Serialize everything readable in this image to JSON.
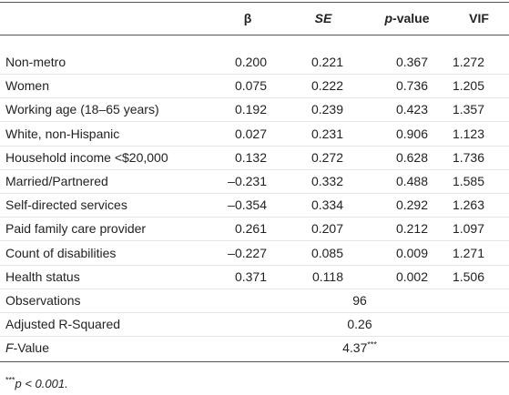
{
  "table": {
    "header": [
      [
        {
          "text": "β"
        }
      ],
      [
        {
          "text": "SE",
          "italic": true
        }
      ],
      [
        {
          "text": "p",
          "italic": true
        },
        {
          "text": "-value"
        }
      ],
      [
        {
          "text": "VIF"
        }
      ]
    ],
    "rows": [
      {
        "label": "Non-metro",
        "cells": [
          "0.200",
          "0.221",
          "0.367",
          "1.272"
        ]
      },
      {
        "label": "Women",
        "cells": [
          "0.075",
          "0.222",
          "0.736",
          "1.205"
        ]
      },
      {
        "label": "Working age (18–65 years)",
        "cells": [
          "0.192",
          "0.239",
          "0.423",
          "1.357"
        ]
      },
      {
        "label": "White, non-Hispanic",
        "cells": [
          "0.027",
          "0.231",
          "0.906",
          "1.123"
        ]
      },
      {
        "label": "Household income <$20,000",
        "cells": [
          "0.132",
          "0.272",
          "0.628",
          "1.736"
        ]
      },
      {
        "label": "Married/Partnered",
        "cells": [
          "–0.231",
          "0.332",
          "0.488",
          "1.585"
        ]
      },
      {
        "label": "Self-directed services",
        "cells": [
          "–0.354",
          "0.334",
          "0.292",
          "1.263"
        ]
      },
      {
        "label": "Paid family care provider",
        "cells": [
          "0.261",
          "0.207",
          "0.212",
          "1.097"
        ]
      },
      {
        "label": "Count of disabilities",
        "cells": [
          "–0.227",
          "0.085",
          "0.009",
          "1.271"
        ]
      },
      {
        "label": "Health status",
        "cells": [
          "0.371",
          "0.118",
          "0.002",
          "1.506"
        ]
      }
    ],
    "summary": [
      {
        "label": [
          {
            "text": "Observations"
          }
        ],
        "value": [
          {
            "text": "96"
          }
        ]
      },
      {
        "label": [
          {
            "text": "Adjusted R-Squared"
          }
        ],
        "value": [
          {
            "text": "0.26"
          }
        ]
      },
      {
        "label": [
          {
            "text": "F",
            "italic": true
          },
          {
            "text": "-Value"
          }
        ],
        "value": [
          {
            "text": "4.37"
          },
          {
            "text": "***",
            "sup": true
          }
        ]
      }
    ],
    "footnote": [
      {
        "text": "***",
        "sup": true
      },
      {
        "text": "p < 0.001.",
        "italic": true
      }
    ]
  }
}
